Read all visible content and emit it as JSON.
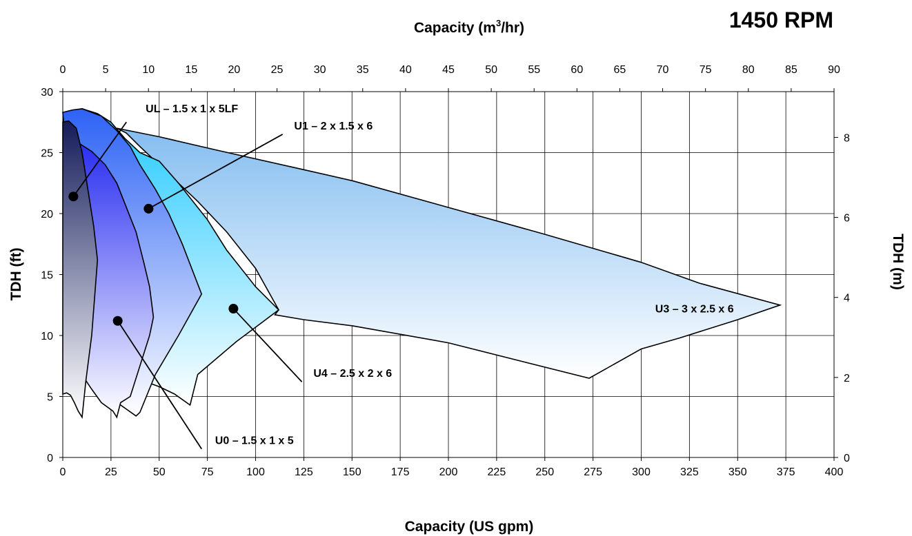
{
  "chart_data": {
    "type": "area",
    "title": "1450 RPM",
    "xlabel": "Capacity (US gpm)",
    "x2label_prefix": "Capacity (m",
    "x2label_sup": "3",
    "x2label_suffix": "/hr)",
    "ylabel": "TDH (ft)",
    "y2label": "TDH (m)",
    "xlim": [
      0,
      400
    ],
    "ylim": [
      0,
      30
    ],
    "x2lim": [
      0,
      90
    ],
    "y2lim": [
      0,
      9.144
    ],
    "xticks": [
      0,
      25,
      50,
      75,
      100,
      125,
      150,
      175,
      200,
      225,
      250,
      275,
      300,
      325,
      350,
      375,
      400
    ],
    "yticks": [
      0,
      5,
      10,
      15,
      20,
      25,
      30
    ],
    "x2ticks": [
      0,
      5,
      10,
      15,
      20,
      25,
      30,
      35,
      40,
      45,
      50,
      55,
      60,
      65,
      70,
      75,
      80,
      85,
      90
    ],
    "y2ticks": [
      0,
      2,
      4,
      6,
      8
    ],
    "grid": true,
    "series": [
      {
        "name": "U3 – 3 x 2.5 x 6",
        "color_top": "#84bdf0",
        "color_bottom": "#ffffff",
        "points": [
          [
            28,
            27
          ],
          [
            50,
            26.3
          ],
          [
            80,
            25.2
          ],
          [
            125,
            23.6
          ],
          [
            150,
            22.7
          ],
          [
            200,
            20.5
          ],
          [
            250,
            18.3
          ],
          [
            300,
            16
          ],
          [
            330,
            14.3
          ],
          [
            372,
            12.5
          ],
          [
            350,
            11.3
          ],
          [
            320,
            9.8
          ],
          [
            300,
            8.9
          ],
          [
            273,
            6.5
          ],
          [
            240,
            7.8
          ],
          [
            200,
            9.4
          ],
          [
            150,
            10.8
          ],
          [
            125,
            11.3
          ],
          [
            110,
            11.7
          ],
          [
            112,
            12.1
          ],
          [
            100,
            15.5
          ],
          [
            85,
            18.5
          ],
          [
            70,
            21
          ],
          [
            60,
            22.5
          ],
          [
            50,
            24
          ],
          [
            40,
            25.5
          ],
          [
            33,
            26.6
          ],
          [
            28,
            27
          ]
        ]
      },
      {
        "name": "U4 – 2.5 x 2 x 6",
        "color_top": "#1ec8ff",
        "color_bottom": "#ffffff",
        "points": [
          [
            10,
            28.6
          ],
          [
            18,
            28.2
          ],
          [
            25,
            27.5
          ],
          [
            32,
            26.2
          ],
          [
            40,
            25
          ],
          [
            50,
            24.3
          ],
          [
            60,
            22.5
          ],
          [
            75,
            19.5
          ],
          [
            85,
            17
          ],
          [
            100,
            14
          ],
          [
            112,
            12.1
          ],
          [
            90,
            9.5
          ],
          [
            70,
            6.8
          ],
          [
            66,
            4.3
          ],
          [
            58,
            5.2
          ],
          [
            50,
            5.8
          ],
          [
            38,
            6.5
          ],
          [
            24,
            4.5
          ],
          [
            8,
            25
          ],
          [
            10,
            28.6
          ]
        ]
      },
      {
        "name": "U1 – 2 x 1.5 x 6",
        "color_top": "#2c62f5",
        "color_bottom": "#ffffff",
        "points": [
          [
            0,
            28.3
          ],
          [
            5,
            28.5
          ],
          [
            10,
            28.6
          ],
          [
            20,
            28
          ],
          [
            28,
            26.8
          ],
          [
            35,
            25.5
          ],
          [
            40,
            24
          ],
          [
            48,
            22
          ],
          [
            55,
            20
          ],
          [
            62,
            17.5
          ],
          [
            72,
            13.4
          ],
          [
            60,
            10
          ],
          [
            48,
            6.8
          ],
          [
            40,
            3.7
          ],
          [
            38,
            3.4
          ],
          [
            30,
            4.3
          ],
          [
            20,
            6
          ],
          [
            10,
            10
          ],
          [
            5,
            20
          ],
          [
            0,
            28.3
          ]
        ]
      },
      {
        "name": "U0 – 1.5 x 1 x 5",
        "color_top": "#2a2ff0",
        "color_bottom": "#ffffff",
        "points": [
          [
            9,
            25.7
          ],
          [
            15,
            25.1
          ],
          [
            22,
            24
          ],
          [
            28,
            22.5
          ],
          [
            33,
            20.5
          ],
          [
            38,
            18.5
          ],
          [
            42,
            16
          ],
          [
            45,
            14
          ],
          [
            47,
            11.5
          ],
          [
            45,
            10
          ],
          [
            40,
            7.5
          ],
          [
            35,
            5
          ],
          [
            30,
            4.5
          ],
          [
            28,
            3.3
          ],
          [
            26,
            3.8
          ],
          [
            20,
            4.5
          ],
          [
            15,
            5.6
          ],
          [
            12,
            6.3
          ],
          [
            9,
            15
          ],
          [
            9,
            25.7
          ]
        ]
      },
      {
        "name": "UL – 1.5 x 1 x 5LF",
        "color_top": "#141c5a",
        "color_bottom": "#ffffff",
        "points": [
          [
            0,
            27.5
          ],
          [
            3,
            27.6
          ],
          [
            7,
            27
          ],
          [
            10,
            25
          ],
          [
            12,
            23
          ],
          [
            14,
            21
          ],
          [
            16,
            19
          ],
          [
            18,
            16.2
          ],
          [
            15,
            10
          ],
          [
            12,
            6.3
          ],
          [
            10,
            3.3
          ],
          [
            8,
            3.8
          ],
          [
            6,
            4.5
          ],
          [
            4,
            5.1
          ],
          [
            2,
            5.3
          ],
          [
            0,
            5.2
          ],
          [
            0,
            27.5
          ]
        ]
      }
    ],
    "annotations": [
      {
        "label": "UL – 1.5 x 1 x 5LF",
        "dot": [
          5.5,
          21.4
        ],
        "line_end": [
          33,
          27.5
        ],
        "text_pos": [
          43,
          28.3
        ],
        "anchor": "start"
      },
      {
        "label": "U1 – 2 x 1.5 x 6",
        "dot": [
          44.5,
          20.4
        ],
        "line_end": [
          114,
          26.5
        ],
        "text_pos": [
          120,
          26.9
        ],
        "anchor": "start"
      },
      {
        "label": "U0 – 1.5 x 1 x 5",
        "dot": [
          28.5,
          11.2
        ],
        "line_end": [
          72,
          0.7
        ],
        "text_pos": [
          79,
          1.1
        ],
        "anchor": "start"
      },
      {
        "label": "U4 – 2.5 x 2 x 6",
        "dot": [
          88.5,
          12.2
        ],
        "line_end": [
          124,
          6.2
        ],
        "text_pos": [
          130,
          6.6
        ],
        "anchor": "start"
      },
      {
        "label": "U3 – 3 x 2.5 x 6",
        "text_pos": [
          348,
          11.9
        ],
        "anchor": "end"
      }
    ]
  }
}
